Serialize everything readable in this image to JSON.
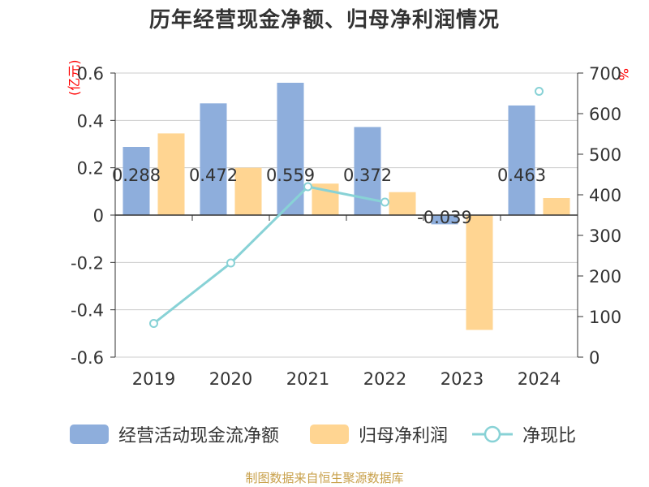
{
  "title": "历年经营现金净额、归母净利润情况",
  "left_unit": "(亿元)",
  "right_unit": "%",
  "source": "制图数据来自恒生聚源数据库",
  "colors": {
    "cash": "#8eaedc",
    "profit": "#ffd592",
    "ratio": "#88d2d6",
    "axis": "#333333",
    "grid": "#cccccc"
  },
  "chart_data": {
    "type": "bar",
    "categories": [
      "2019",
      "2020",
      "2021",
      "2022",
      "2023",
      "2024"
    ],
    "series": [
      {
        "name": "经营活动现金流净额",
        "type": "bar",
        "axis": "left",
        "values": [
          0.288,
          0.472,
          0.559,
          0.372,
          -0.039,
          0.463
        ],
        "labels": [
          "0.288",
          "0.472",
          "0.559",
          "0.372",
          "-0.039",
          "0.463"
        ]
      },
      {
        "name": "归母净利润",
        "type": "bar",
        "axis": "left",
        "values": [
          0.345,
          0.2,
          0.133,
          0.097,
          -0.485,
          0.072
        ]
      },
      {
        "name": "净现比",
        "type": "line",
        "axis": "right",
        "values": [
          83,
          232,
          420,
          382,
          null,
          655
        ]
      }
    ],
    "left_axis": {
      "ylim": [
        -0.6,
        0.6
      ],
      "ticks": [
        "0.6",
        "0.4",
        "0.2",
        "0",
        "-0.2",
        "-0.4",
        "-0.6"
      ],
      "tick_values": [
        0.6,
        0.4,
        0.2,
        0,
        -0.2,
        -0.4,
        -0.6
      ]
    },
    "right_axis": {
      "ylim": [
        0,
        700
      ],
      "ticks": [
        "700",
        "600",
        "500",
        "400",
        "300",
        "200",
        "100",
        "0"
      ],
      "tick_values": [
        700,
        600,
        500,
        400,
        300,
        200,
        100,
        0
      ]
    },
    "grid": true,
    "legend_position": "bottom"
  }
}
